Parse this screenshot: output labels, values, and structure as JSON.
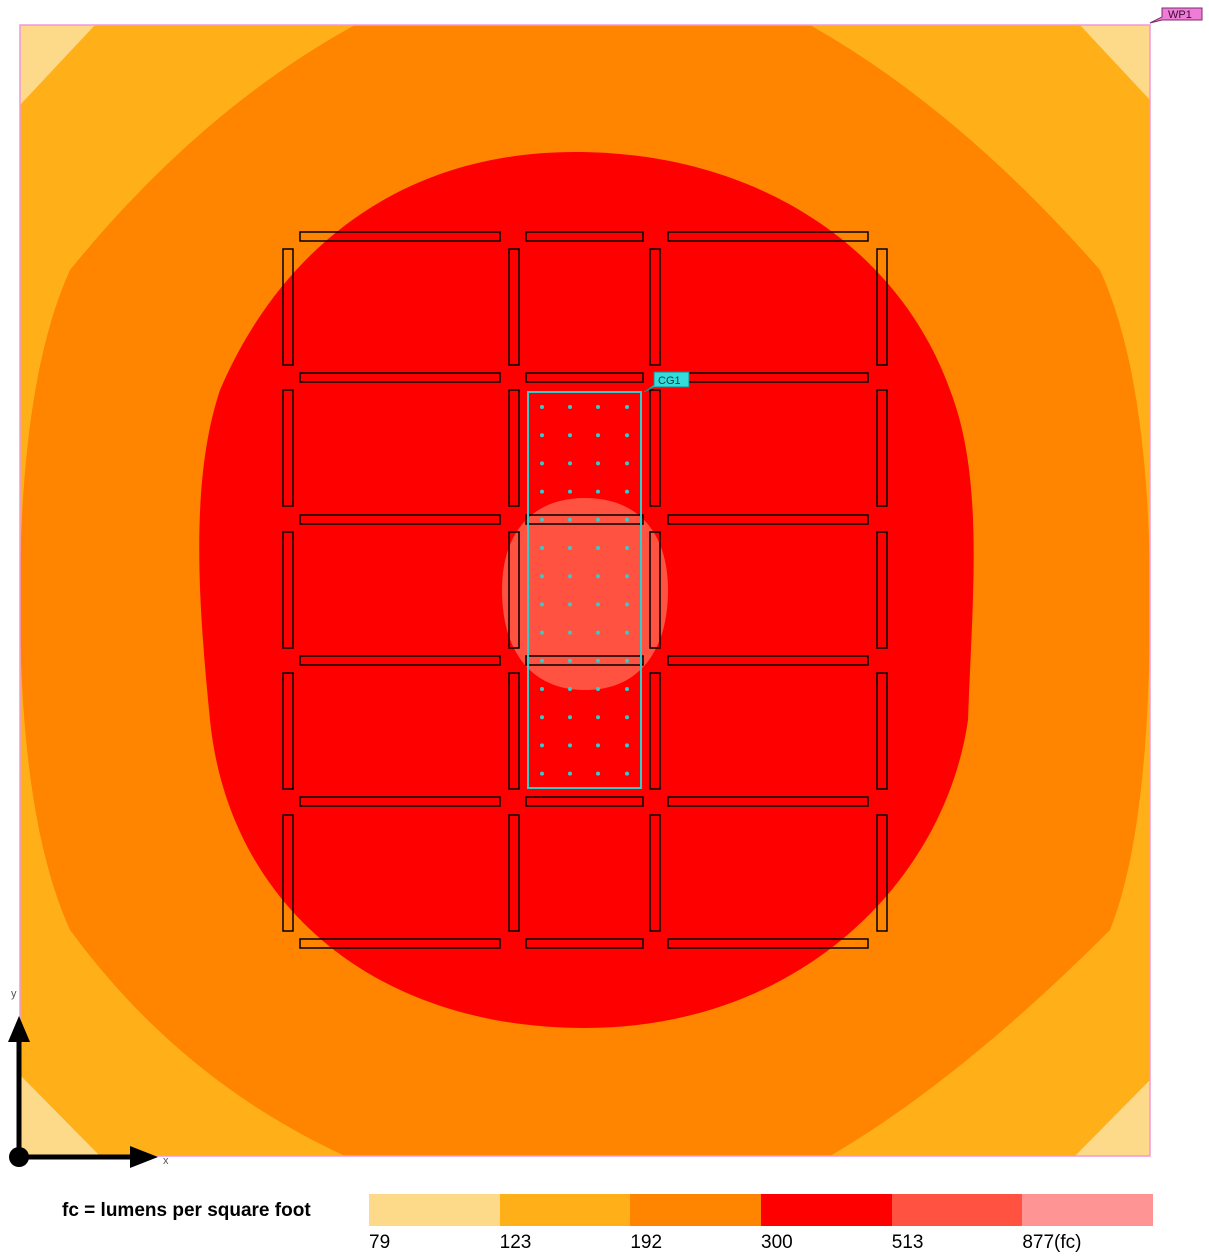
{
  "tags": {
    "workplane": "WP1",
    "calc_grid": "CG1"
  },
  "axes": {
    "x_label": "x",
    "y_label": "y"
  },
  "legend": {
    "caption": "fc = lumens per square foot",
    "levels": [
      {
        "label": "79",
        "color": "#FDD98A"
      },
      {
        "label": "123",
        "color": "#FFB019"
      },
      {
        "label": "192",
        "color": "#FF8400"
      },
      {
        "label": "300",
        "color": "#FF0000"
      },
      {
        "label": "513",
        "color": "#FF5240"
      },
      {
        "label": "877(fc)",
        "color": "#FF9494"
      }
    ]
  },
  "colors": {
    "workplane_border": "#EE99DD",
    "tag_workplane_fill": "#F07CD8",
    "calc_grid": "#33CCCC",
    "luminaire_outline": "#000000"
  }
}
